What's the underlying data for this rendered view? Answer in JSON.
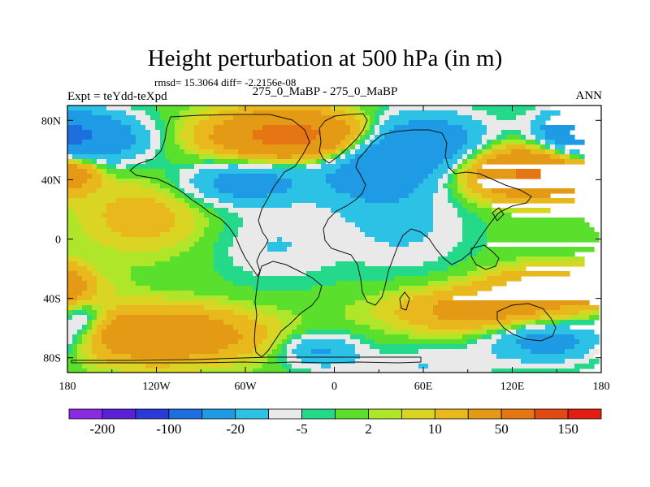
{
  "chart_data": {
    "type": "contour-map",
    "title": "Height perturbation at 500 hPa (in m)",
    "stats": "rmsd= 15.3064 diff= -2.2156e-08",
    "left_label": "Expt = teYdd-teXpd",
    "center_label": "275_0_MaBP - 275_0_MaBP",
    "right_label": "ANN",
    "xlim": [
      -180,
      180
    ],
    "ylim": [
      -90,
      90
    ],
    "x_ticks": [
      {
        "value": -180,
        "label": "180"
      },
      {
        "value": -120,
        "label": "120W"
      },
      {
        "value": -60,
        "label": "60W"
      },
      {
        "value": 0,
        "label": "0"
      },
      {
        "value": 60,
        "label": "60E"
      },
      {
        "value": 120,
        "label": "120E"
      },
      {
        "value": 180,
        "label": "180"
      }
    ],
    "y_ticks": [
      {
        "value": 80,
        "label": "80N"
      },
      {
        "value": 40,
        "label": "40N"
      },
      {
        "value": 0,
        "label": "0"
      },
      {
        "value": -40,
        "label": "40S"
      },
      {
        "value": -80,
        "label": "80S"
      }
    ],
    "colorbar": {
      "levels": [
        "-200",
        "-100",
        "-20",
        "-5",
        "2",
        "10",
        "50",
        "150"
      ],
      "colors": [
        "#8a2be2",
        "#5a1fd6",
        "#2a3ad8",
        "#1d6fe0",
        "#1f9ae4",
        "#2cc2e6",
        "#e9e9e9",
        "#25d98a",
        "#5adf2c",
        "#b0e62a",
        "#d9d522",
        "#e8b81c",
        "#e59a15",
        "#e67613",
        "#e24a13",
        "#e21e12"
      ]
    },
    "field": {
      "description": "synthetic representation of the plotted perturbation field",
      "blobs": [
        {
          "lon": -165,
          "lat": 68,
          "amp": -40,
          "slon": 26,
          "slat": 12
        },
        {
          "lon": -30,
          "lat": 70,
          "amp": 65,
          "slon": 35,
          "slat": 11
        },
        {
          "lon": 60,
          "lat": 65,
          "amp": -38,
          "slon": 30,
          "slat": 14
        },
        {
          "lon": 165,
          "lat": 72,
          "amp": -40,
          "slon": 20,
          "slat": 11
        },
        {
          "lon": 130,
          "lat": 45,
          "amp": 55,
          "slon": 30,
          "slat": 12
        },
        {
          "lon": -175,
          "lat": 45,
          "amp": 28,
          "slon": 12,
          "slat": 8
        },
        {
          "lon": -60,
          "lat": 38,
          "amp": -30,
          "slon": 28,
          "slat": 10
        },
        {
          "lon": 25,
          "lat": 45,
          "amp": -28,
          "slon": 28,
          "slat": 15
        },
        {
          "lon": -130,
          "lat": 15,
          "amp": 15,
          "slon": 28,
          "slat": 16
        },
        {
          "lon": 45,
          "lat": 10,
          "amp": -12,
          "slon": 32,
          "slat": 22
        },
        {
          "lon": -40,
          "lat": -5,
          "amp": -10,
          "slon": 28,
          "slat": 18
        },
        {
          "lon": -180,
          "lat": -30,
          "amp": 20,
          "slon": 10,
          "slat": 9
        },
        {
          "lon": 150,
          "lat": -32,
          "amp": 30,
          "slon": 30,
          "slat": 9
        },
        {
          "lon": 100,
          "lat": -48,
          "amp": 30,
          "slon": 40,
          "slat": 10
        },
        {
          "lon": -120,
          "lat": -65,
          "amp": 45,
          "slon": 45,
          "slat": 12
        },
        {
          "lon": -10,
          "lat": -75,
          "amp": -22,
          "slon": 18,
          "slat": 8
        },
        {
          "lon": 60,
          "lat": -85,
          "amp": -10,
          "slon": 35,
          "slat": 8
        },
        {
          "lon": 150,
          "lat": -68,
          "amp": -35,
          "slon": 30,
          "slat": 10
        },
        {
          "lon": -170,
          "lat": -55,
          "amp": -20,
          "slon": 12,
          "slat": 9
        }
      ]
    }
  }
}
